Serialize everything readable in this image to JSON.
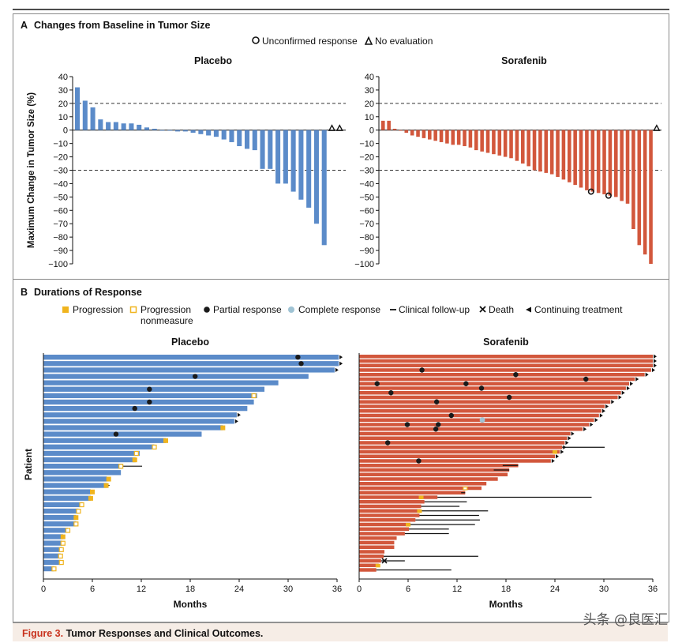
{
  "panel_a": {
    "letter": "A",
    "title": "Changes from Baseline in Tumor Size",
    "legend_unconfirmed": "Unconfirmed response",
    "legend_no_eval": "No evaluation"
  },
  "panel_b": {
    "letter": "B",
    "title": "Durations of Response",
    "legend": {
      "progression": "Progression",
      "progression_nonmeasure_1": "Progression",
      "progression_nonmeasure_2": "nonmeasure",
      "partial": "Partial response",
      "complete": "Complete response",
      "followup": "Clinical follow-up",
      "death": "Death",
      "continuing": "Continuing treatment"
    }
  },
  "caption": {
    "figure": "Figure 3.",
    "text": "Tumor Responses and Clinical Outcomes."
  },
  "watermark": "头条 @良医汇",
  "colors": {
    "placebo": "#5b8bc9",
    "sorafenib": "#d2573c",
    "progression": "#f0b41e",
    "complete": "#9fc3d4"
  },
  "chart_data": [
    {
      "id": "waterfall-placebo",
      "type": "bar",
      "title": "Placebo",
      "ylabel": "Maximum Change in Tumor Size (%)",
      "ylim": [
        -100,
        40
      ],
      "yticks": [
        "40",
        "30",
        "20",
        "10",
        "0",
        "−10",
        "−20",
        "−30",
        "−40",
        "−50",
        "−60",
        "−70",
        "−80",
        "−90",
        "−100"
      ],
      "reference_lines": [
        20,
        -30
      ],
      "values": [
        32,
        22,
        17,
        8,
        6,
        6,
        5,
        5,
        4,
        2,
        1,
        0,
        0,
        -1,
        -1,
        -2,
        -3,
        -4,
        -5,
        -7,
        -9,
        -12,
        -14,
        -15,
        -29,
        -29,
        -40,
        -40,
        -46,
        -52,
        -58,
        -70,
        -86
      ],
      "no_evaluation_count": 2
    },
    {
      "id": "waterfall-sorafenib",
      "type": "bar",
      "title": "Sorafenib",
      "ylim": [
        -100,
        40
      ],
      "yticks": [
        "40",
        "30",
        "20",
        "10",
        "0",
        "−10",
        "−20",
        "−30",
        "−40",
        "−50",
        "−60",
        "−70",
        "−80",
        "−90",
        "−100"
      ],
      "reference_lines": [
        20,
        -30
      ],
      "values": [
        7,
        7,
        1,
        0,
        -2,
        -4,
        -5,
        -6,
        -7,
        -8,
        -9,
        -10,
        -11,
        -11,
        -12,
        -13,
        -15,
        -16,
        -17,
        -18,
        -19,
        -20,
        -21,
        -23,
        -25,
        -27,
        -30,
        -31,
        -32,
        -33,
        -35,
        -37,
        -39,
        -41,
        -43,
        -45,
        -46,
        -47,
        -48,
        -49,
        -50,
        -53,
        -55,
        -74,
        -86,
        -93,
        -100
      ],
      "unconfirmed_response_values": [
        -46,
        -49
      ],
      "no_evaluation_count": 1
    },
    {
      "id": "duration-placebo",
      "type": "bar",
      "orientation": "horizontal",
      "title": "Placebo",
      "xlabel": "Months",
      "ylabel": "Patient",
      "xlim": [
        0,
        36
      ],
      "xticks": [
        "0",
        "6",
        "12",
        "18",
        "24",
        "30",
        "36"
      ],
      "durations": [
        36.2,
        36.2,
        35.7,
        32.5,
        28.8,
        27.1,
        26.2,
        25.8,
        25.0,
        23.7,
        23.4,
        22.0,
        19.4,
        15.0,
        13.6,
        11.8,
        11.3,
        9.7,
        9.5,
        7.8,
        7.8,
        5.8,
        5.8,
        4.8,
        4.3,
        4.0,
        4.0,
        3.0,
        2.4,
        2.3,
        2.3,
        2.1,
        2.1,
        1.3
      ],
      "progression": [
        [
          25.8,
          "nonmeasure"
        ],
        [
          22,
          "progression"
        ],
        [
          15,
          "progression"
        ],
        [
          13.6,
          "nonmeasure"
        ],
        [
          11.4,
          "nonmeasure"
        ],
        [
          11.2,
          "progression"
        ],
        [
          9.5,
          "nonmeasure"
        ],
        [
          8,
          "progression"
        ],
        [
          7.7,
          "progression"
        ],
        [
          6,
          "progression"
        ],
        [
          5.8,
          "progression"
        ],
        [
          4.7,
          "nonmeasure"
        ],
        [
          4.3,
          "nonmeasure"
        ],
        [
          4,
          "progression"
        ],
        [
          4,
          "nonmeasure"
        ],
        [
          3,
          "nonmeasure"
        ],
        [
          2.4,
          "progression"
        ],
        [
          2.4,
          "nonmeasure"
        ],
        [
          2.2,
          "nonmeasure"
        ],
        [
          2.1,
          "nonmeasure"
        ],
        [
          2.2,
          "nonmeasure"
        ],
        [
          1.3,
          "nonmeasure"
        ]
      ],
      "partial_response": [
        31.2,
        31.6,
        18.6,
        13.0,
        13.0,
        11.2,
        8.9
      ],
      "continuing_treatment": [
        36.2,
        36.2,
        35.7,
        23.7,
        23.4
      ],
      "clinical_followup_end": [
        12.1,
        8.1
      ]
    },
    {
      "id": "duration-sorafenib",
      "type": "bar",
      "orientation": "horizontal",
      "title": "Sorafenib",
      "xlabel": "Months",
      "xlim": [
        0,
        36
      ],
      "xticks": [
        "0",
        "6",
        "12",
        "18",
        "24",
        "30",
        "36"
      ],
      "durations": [
        36,
        36,
        36,
        35.8,
        35,
        33.8,
        33.1,
        32.7,
        32.1,
        31.7,
        30.8,
        30.1,
        29.7,
        29.4,
        28.8,
        28.2,
        27.4,
        25.9,
        25.5,
        25.2,
        24.9,
        24.6,
        24,
        23.5,
        19.5,
        18.4,
        18.2,
        17,
        15.6,
        15,
        13,
        9.6,
        8,
        7.6,
        7.5,
        7.4,
        6.9,
        6.3,
        6.1,
        5.6,
        4.6,
        4.3,
        4.3,
        3.1,
        3,
        2.7,
        2.4,
        2.1
      ],
      "progression": [
        [
          24,
          "progression"
        ],
        [
          13,
          "nonmeasure"
        ],
        [
          7.6,
          "progression"
        ],
        [
          7.4,
          "progression"
        ],
        [
          6,
          "progression"
        ],
        [
          2.3,
          "progression"
        ]
      ],
      "partial_response": [
        7.7,
        19.2,
        27.8,
        2.2,
        13.1,
        15.0,
        3.9,
        18.4,
        9.5,
        11.3,
        5.9,
        9.7,
        9.4,
        3.5,
        7.3
      ],
      "complete_response": [
        15.1
      ],
      "continuing_treatment": [
        36,
        36,
        36,
        35.8,
        35,
        33.8,
        33.1,
        32.7,
        32.1,
        31.7,
        30.8,
        30.1,
        29.7,
        29.4,
        28.8,
        28.2,
        27.4,
        25.9,
        25.5,
        25.2,
        24.9,
        24.6,
        24,
        23.5
      ],
      "clinical_followup_end": [
        30.1,
        30.1,
        17.6,
        16.5,
        12.5,
        28.5,
        13.2,
        12.3,
        15.8,
        14.7,
        14.8,
        14.2,
        11.0,
        11.0,
        14.6,
        5.6,
        11.3
      ],
      "death": [
        3.1
      ]
    }
  ]
}
